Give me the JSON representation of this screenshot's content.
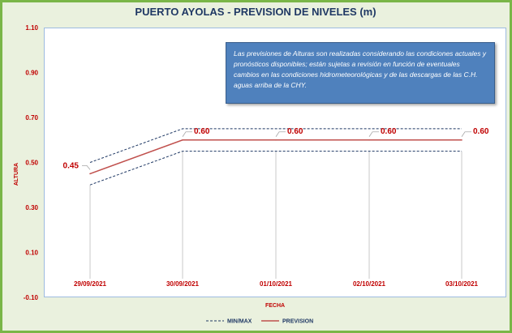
{
  "chart_data": {
    "type": "line",
    "title": "PUERTO AYOLAS - PREVISION DE NIVELES (m)",
    "xlabel": "FECHA",
    "ylabel": "ALTURA",
    "categories": [
      "29/09/2021",
      "30/09/2021",
      "01/10/2021",
      "02/10/2021",
      "03/10/2021"
    ],
    "series": [
      {
        "name": "PREVISION",
        "values": [
          0.45,
          0.6,
          0.6,
          0.6,
          0.6
        ],
        "color": "#c0504d",
        "style": "solid"
      },
      {
        "name": "MIN/MAX",
        "role": "min",
        "values": [
          0.4,
          0.55,
          0.55,
          0.55,
          0.55
        ],
        "color": "#1f3864",
        "style": "dashed"
      },
      {
        "name": "MIN/MAX",
        "role": "max",
        "values": [
          0.5,
          0.65,
          0.65,
          0.65,
          0.65
        ],
        "color": "#1f3864",
        "style": "dashed"
      }
    ],
    "data_labels": [
      "0.45",
      "0.60",
      "0.60",
      "0.60",
      "0.60"
    ],
    "ylim": [
      -0.1,
      1.1
    ],
    "yticks": [
      -0.1,
      0.1,
      0.3,
      0.5,
      0.7,
      0.9,
      1.1
    ],
    "ytick_labels": [
      "-0.10",
      "0.10",
      "0.30",
      "0.50",
      "0.70",
      "0.90",
      "1.10"
    ],
    "grid": false,
    "legend_position": "bottom",
    "legend": [
      {
        "label": "MIN/MAX",
        "style": "dashed",
        "color": "#1f3864"
      },
      {
        "label": "PREVISION",
        "style": "solid",
        "color": "#c0504d"
      }
    ],
    "annotation": "Las previsiones de Alturas son realizadas considerando las condiciones actuales y pronósticos disponibles; están sujetas a revisión en función de eventuales cambios en las condiciones hidrometeorológicas y de las descargas de las C.H. aguas arriba de la CHY."
  }
}
